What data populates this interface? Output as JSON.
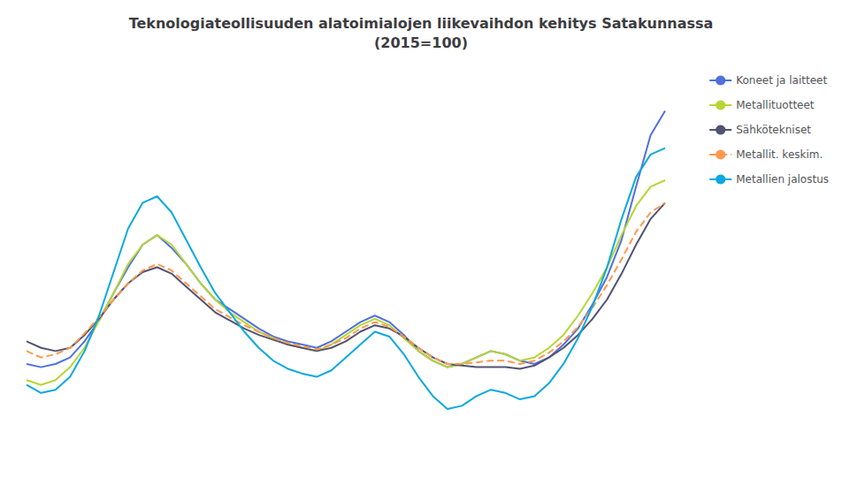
{
  "chart_data": {
    "type": "line",
    "title": "Teknologiateollisuuden alatoimialojen liikevaihdon kehitys Satakunnassa\n(2015=100)",
    "x": [
      0,
      1,
      2,
      3,
      4,
      5,
      6,
      7,
      8,
      9,
      10,
      11,
      12,
      13,
      14,
      15,
      16,
      17,
      18,
      19,
      20,
      21,
      22,
      23,
      24,
      25,
      26,
      27,
      28,
      29,
      30,
      31,
      32,
      33,
      34,
      35,
      36,
      37,
      38,
      39,
      40,
      41,
      42,
      43,
      44
    ],
    "series": [
      {
        "name": "Koneet ja laitteet",
        "line_style": "solid",
        "values": [
          68,
          66,
          68,
          72,
          82,
          95,
          112,
          128,
          142,
          148,
          140,
          130,
          118,
          108,
          102,
          96,
          90,
          85,
          82,
          80,
          78,
          82,
          88,
          94,
          98,
          94,
          86,
          76,
          70,
          66,
          68,
          72,
          76,
          74,
          70,
          68,
          72,
          80,
          90,
          105,
          122,
          145,
          178,
          210,
          225
        ]
      },
      {
        "name": "Metallituotteet",
        "line_style": "solid",
        "values": [
          58,
          55,
          58,
          66,
          78,
          95,
          112,
          130,
          142,
          148,
          142,
          130,
          118,
          108,
          100,
          94,
          88,
          84,
          80,
          78,
          76,
          80,
          86,
          92,
          96,
          92,
          84,
          76,
          70,
          66,
          68,
          72,
          76,
          74,
          70,
          72,
          78,
          86,
          98,
          112,
          128,
          148,
          166,
          178,
          182
        ]
      },
      {
        "name": "Sähkötekniset",
        "line_style": "solid",
        "values": [
          82,
          78,
          76,
          78,
          86,
          96,
          108,
          118,
          125,
          128,
          124,
          116,
          108,
          100,
          95,
          90,
          86,
          83,
          80,
          78,
          76,
          78,
          82,
          88,
          92,
          90,
          85,
          78,
          72,
          68,
          67,
          66,
          66,
          66,
          65,
          67,
          72,
          78,
          86,
          96,
          108,
          124,
          142,
          158,
          168
        ]
      },
      {
        "name": "Metallit. keskim.",
        "line_style": "dashed",
        "values": [
          76,
          72,
          74,
          78,
          87,
          97,
          108,
          118,
          126,
          130,
          126,
          118,
          110,
          102,
          97,
          92,
          88,
          84,
          81,
          79,
          77,
          80,
          84,
          90,
          94,
          91,
          85,
          78,
          72,
          68,
          68,
          69,
          70,
          70,
          68,
          70,
          75,
          82,
          91,
          103,
          117,
          133,
          150,
          162,
          168
        ]
      },
      {
        "name": "Metallien jalostus",
        "line_style": "solid",
        "values": [
          55,
          50,
          52,
          60,
          76,
          98,
          125,
          152,
          168,
          172,
          162,
          145,
          128,
          112,
          100,
          88,
          78,
          70,
          65,
          62,
          60,
          64,
          72,
          80,
          88,
          85,
          74,
          60,
          48,
          40,
          42,
          48,
          52,
          50,
          46,
          48,
          56,
          68,
          84,
          104,
          128,
          158,
          184,
          198,
          202
        ]
      }
    ],
    "xlim": [
      0,
      44
    ],
    "ylim": [
      0,
      250
    ],
    "tick_labels": false,
    "grid": false,
    "legend": "upper right"
  }
}
